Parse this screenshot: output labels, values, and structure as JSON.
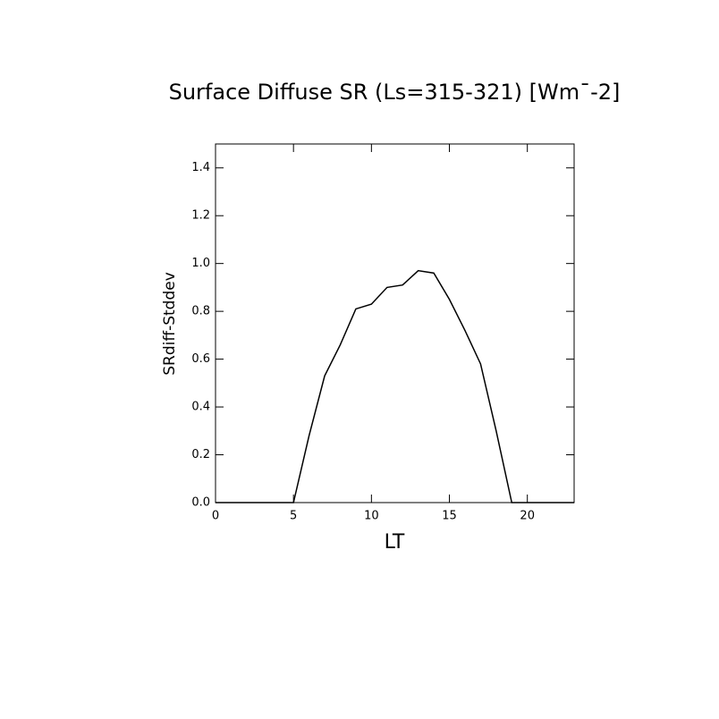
{
  "chart_data": {
    "type": "line",
    "title": "Surface Diffuse SR (Ls=315-321) [Wm¯-2]",
    "x_label": "LT",
    "y_label": "SRdiff-Stddev",
    "x": [
      0,
      1,
      2,
      3,
      4,
      5,
      6,
      7,
      8,
      9,
      10,
      11,
      12,
      13,
      14,
      15,
      16,
      17,
      18,
      19,
      20,
      21,
      22,
      23
    ],
    "series": [
      {
        "color": "#000000",
        "values": [
          0,
          0,
          0,
          0,
          0,
          0,
          0.28,
          0.53,
          0.66,
          0.81,
          0.83,
          0.9,
          0.91,
          0.97,
          0.96,
          0.85,
          0.72,
          0.58,
          0.3,
          0,
          0,
          0,
          0,
          0
        ]
      }
    ],
    "xlim": [
      0,
      23
    ],
    "xticks": [
      0,
      5,
      10,
      15,
      20
    ],
    "ylim": [
      0,
      1.5
    ],
    "yticks": [
      {
        "value": 0,
        "label": "0.0"
      },
      0.2,
      0.4,
      0.6,
      0.8,
      {
        "value": 1,
        "label": "1.0"
      },
      1.2,
      1.4
    ]
  }
}
